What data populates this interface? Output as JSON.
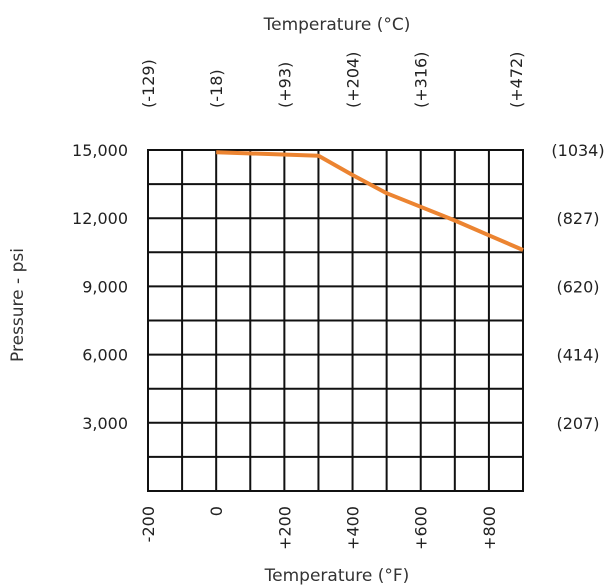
{
  "colors": {
    "series": "#EC8431",
    "grid": "#111111",
    "text": "#222222"
  },
  "chart_data": {
    "type": "line",
    "title": "",
    "xlabel": "Temperature (°F)",
    "ylabel": "Pressure - psi",
    "top_xlabel": "Temperature (°C)",
    "xlim": [
      -200,
      900
    ],
    "ylim": [
      0,
      15000
    ],
    "grid": true,
    "x_ticks": [
      {
        "value": -200,
        "label": "-200"
      },
      {
        "value": 0,
        "label": "0"
      },
      {
        "value": 200,
        "label": "+200"
      },
      {
        "value": 400,
        "label": "+400"
      },
      {
        "value": 600,
        "label": "+600"
      },
      {
        "value": 800,
        "label": "+800"
      }
    ],
    "top_ticks": [
      {
        "value": -200,
        "label": "(-129)"
      },
      {
        "value": 0,
        "label": "(-18)"
      },
      {
        "value": 200,
        "label": "(+93)"
      },
      {
        "value": 400,
        "label": "(+204)"
      },
      {
        "value": 600,
        "label": "(+316)"
      },
      {
        "value": 880,
        "label": "(+472)"
      }
    ],
    "y_ticks": [
      {
        "value": 15000,
        "label": "15,000"
      },
      {
        "value": 12000,
        "label": "12,000"
      },
      {
        "value": 9000,
        "label": "9,000"
      },
      {
        "value": 6000,
        "label": "6,000"
      },
      {
        "value": 3000,
        "label": "3,000"
      }
    ],
    "right_ticks": [
      {
        "value": 15000,
        "label": "(1034)"
      },
      {
        "value": 12000,
        "label": "(827)"
      },
      {
        "value": 9000,
        "label": "(620)"
      },
      {
        "value": 6000,
        "label": "(414)"
      },
      {
        "value": 3000,
        "label": "(207)"
      }
    ],
    "series": [
      {
        "x": [
          0,
          300,
          400,
          500,
          600,
          700,
          800,
          900
        ],
        "y": [
          14900,
          14750,
          13900,
          13100,
          12500,
          11900,
          11250,
          10600
        ]
      }
    ]
  }
}
